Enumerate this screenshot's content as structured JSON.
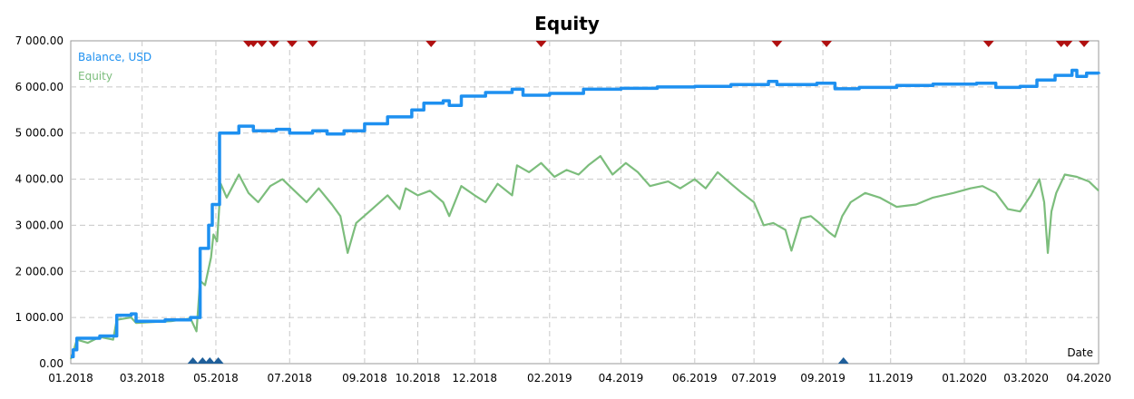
{
  "chart_data": {
    "type": "line",
    "title": "Equity",
    "xlabel": "Date",
    "ylabel": "",
    "ylim": [
      0,
      7000
    ],
    "grid": true,
    "legend_position": "top-left",
    "colors": {
      "balance": "#1e90f0",
      "equity": "#7cbd7c",
      "deal_marker_top": "#b01010",
      "deal_marker_bottom": "#1f5f9a",
      "grid": "#c8c8c8",
      "frame": "#9a9a9a"
    },
    "y_ticks": [
      "0.00",
      "1 000.00",
      "2 000.00",
      "3 000.00",
      "4 000.00",
      "5 000.00",
      "6 000.00",
      "7 000.00"
    ],
    "y_tick_values": [
      0,
      1000,
      2000,
      3000,
      4000,
      5000,
      6000,
      7000
    ],
    "x_ticks": [
      "01.2018",
      "03.2018",
      "05.2018",
      "07.2018",
      "09.2018",
      "10.2018",
      "12.2018",
      "02.2019",
      "04.2019",
      "06.2019",
      "07.2019",
      "09.2019",
      "11.2019",
      "01.2020",
      "03.2020",
      "04.2020"
    ],
    "x_tick_values": [
      "2018-01-01",
      "2018-03-01",
      "2018-05-01",
      "2018-07-01",
      "2018-09-01",
      "2018-10-15",
      "2018-12-01",
      "2019-02-01",
      "2019-04-01",
      "2019-06-01",
      "2019-07-20",
      "2019-09-15",
      "2019-11-10",
      "2020-01-10",
      "2020-03-01",
      "2020-04-30"
    ],
    "x_range": [
      "2018-01-01",
      "2020-04-30"
    ],
    "series": [
      {
        "name": "Balance, USD",
        "key": "balance",
        "step": true,
        "points": [
          [
            "2018-01-01",
            150
          ],
          [
            "2018-01-03",
            300
          ],
          [
            "2018-01-06",
            550
          ],
          [
            "2018-01-25",
            600
          ],
          [
            "2018-02-08",
            1050
          ],
          [
            "2018-02-20",
            1080
          ],
          [
            "2018-02-24",
            920
          ],
          [
            "2018-03-20",
            950
          ],
          [
            "2018-04-10",
            1000
          ],
          [
            "2018-04-18",
            2500
          ],
          [
            "2018-04-25",
            3000
          ],
          [
            "2018-04-28",
            3450
          ],
          [
            "2018-05-04",
            5000
          ],
          [
            "2018-05-20",
            5150
          ],
          [
            "2018-06-01",
            5050
          ],
          [
            "2018-06-20",
            5080
          ],
          [
            "2018-07-01",
            5000
          ],
          [
            "2018-07-20",
            5050
          ],
          [
            "2018-08-01",
            4980
          ],
          [
            "2018-08-15",
            5050
          ],
          [
            "2018-09-01",
            5200
          ],
          [
            "2018-09-20",
            5350
          ],
          [
            "2018-10-10",
            5500
          ],
          [
            "2018-10-20",
            5650
          ],
          [
            "2018-11-05",
            5700
          ],
          [
            "2018-11-10",
            5600
          ],
          [
            "2018-11-20",
            5800
          ],
          [
            "2018-12-10",
            5880
          ],
          [
            "2019-01-01",
            5950
          ],
          [
            "2019-01-10",
            5820
          ],
          [
            "2019-02-01",
            5860
          ],
          [
            "2019-03-01",
            5950
          ],
          [
            "2019-04-01",
            5970
          ],
          [
            "2019-05-01",
            6000
          ],
          [
            "2019-06-01",
            6010
          ],
          [
            "2019-07-01",
            6050
          ],
          [
            "2019-08-01",
            6120
          ],
          [
            "2019-08-08",
            6050
          ],
          [
            "2019-09-10",
            6080
          ],
          [
            "2019-09-25",
            5960
          ],
          [
            "2019-10-15",
            5990
          ],
          [
            "2019-11-15",
            6030
          ],
          [
            "2019-12-15",
            6060
          ],
          [
            "2020-01-20",
            6080
          ],
          [
            "2020-02-05",
            5990
          ],
          [
            "2020-02-25",
            6010
          ],
          [
            "2020-03-10",
            6150
          ],
          [
            "2020-03-25",
            6250
          ],
          [
            "2020-04-08",
            6360
          ],
          [
            "2020-04-12",
            6230
          ],
          [
            "2020-04-20",
            6300
          ],
          [
            "2020-04-30",
            6280
          ]
        ]
      },
      {
        "name": "Equity",
        "key": "equity",
        "step": false,
        "points": [
          [
            "2018-01-01",
            100
          ],
          [
            "2018-01-03",
            250
          ],
          [
            "2018-01-06",
            520
          ],
          [
            "2018-01-15",
            450
          ],
          [
            "2018-01-25",
            580
          ],
          [
            "2018-02-05",
            520
          ],
          [
            "2018-02-08",
            950
          ],
          [
            "2018-02-20",
            1000
          ],
          [
            "2018-02-24",
            880
          ],
          [
            "2018-03-10",
            900
          ],
          [
            "2018-03-25",
            920
          ],
          [
            "2018-04-10",
            980
          ],
          [
            "2018-04-15",
            700
          ],
          [
            "2018-04-18",
            1800
          ],
          [
            "2018-04-22",
            1700
          ],
          [
            "2018-04-27",
            2300
          ],
          [
            "2018-04-29",
            2800
          ],
          [
            "2018-05-02",
            2650
          ],
          [
            "2018-05-05",
            3900
          ],
          [
            "2018-05-10",
            3600
          ],
          [
            "2018-05-20",
            4100
          ],
          [
            "2018-05-28",
            3700
          ],
          [
            "2018-06-05",
            3500
          ],
          [
            "2018-06-15",
            3850
          ],
          [
            "2018-06-25",
            4000
          ],
          [
            "2018-07-05",
            3750
          ],
          [
            "2018-07-15",
            3500
          ],
          [
            "2018-07-25",
            3800
          ],
          [
            "2018-08-05",
            3450
          ],
          [
            "2018-08-12",
            3200
          ],
          [
            "2018-08-18",
            2400
          ],
          [
            "2018-08-25",
            3050
          ],
          [
            "2018-09-05",
            3300
          ],
          [
            "2018-09-20",
            3650
          ],
          [
            "2018-09-30",
            3350
          ],
          [
            "2018-10-05",
            3800
          ],
          [
            "2018-10-15",
            3650
          ],
          [
            "2018-10-25",
            3750
          ],
          [
            "2018-11-05",
            3500
          ],
          [
            "2018-11-10",
            3200
          ],
          [
            "2018-11-20",
            3850
          ],
          [
            "2018-12-01",
            3650
          ],
          [
            "2018-12-10",
            3500
          ],
          [
            "2018-12-20",
            3900
          ],
          [
            "2019-01-01",
            3650
          ],
          [
            "2019-01-05",
            4300
          ],
          [
            "2019-01-15",
            4150
          ],
          [
            "2019-01-25",
            4350
          ],
          [
            "2019-02-05",
            4050
          ],
          [
            "2019-02-15",
            4200
          ],
          [
            "2019-02-25",
            4100
          ],
          [
            "2019-03-05",
            4300
          ],
          [
            "2019-03-15",
            4500
          ],
          [
            "2019-03-25",
            4100
          ],
          [
            "2019-04-05",
            4350
          ],
          [
            "2019-04-15",
            4150
          ],
          [
            "2019-04-25",
            3850
          ],
          [
            "2019-05-10",
            3950
          ],
          [
            "2019-05-20",
            3800
          ],
          [
            "2019-06-01",
            4000
          ],
          [
            "2019-06-10",
            3800
          ],
          [
            "2019-06-20",
            4150
          ],
          [
            "2019-07-01",
            3900
          ],
          [
            "2019-07-10",
            3700
          ],
          [
            "2019-07-20",
            3500
          ],
          [
            "2019-07-28",
            3000
          ],
          [
            "2019-08-05",
            3050
          ],
          [
            "2019-08-15",
            2900
          ],
          [
            "2019-08-20",
            2450
          ],
          [
            "2019-08-28",
            3150
          ],
          [
            "2019-09-05",
            3200
          ],
          [
            "2019-09-12",
            3050
          ],
          [
            "2019-09-20",
            2850
          ],
          [
            "2019-09-25",
            2750
          ],
          [
            "2019-10-01",
            3200
          ],
          [
            "2019-10-08",
            3500
          ],
          [
            "2019-10-20",
            3700
          ],
          [
            "2019-11-01",
            3600
          ],
          [
            "2019-11-15",
            3400
          ],
          [
            "2019-12-01",
            3450
          ],
          [
            "2019-12-15",
            3600
          ],
          [
            "2020-01-01",
            3700
          ],
          [
            "2020-01-15",
            3800
          ],
          [
            "2020-01-25",
            3850
          ],
          [
            "2020-02-05",
            3700
          ],
          [
            "2020-02-15",
            3350
          ],
          [
            "2020-02-25",
            3300
          ],
          [
            "2020-03-05",
            3650
          ],
          [
            "2020-03-12",
            4000
          ],
          [
            "2020-03-16",
            3500
          ],
          [
            "2020-03-19",
            2400
          ],
          [
            "2020-03-22",
            3300
          ],
          [
            "2020-03-26",
            3700
          ],
          [
            "2020-04-02",
            4100
          ],
          [
            "2020-04-12",
            4050
          ],
          [
            "2020-04-22",
            3950
          ],
          [
            "2020-04-30",
            3750
          ]
        ]
      }
    ],
    "deal_markers_top": [
      "2018-05-28",
      "2018-06-01",
      "2018-06-08",
      "2018-06-18",
      "2018-07-03",
      "2018-07-20",
      "2018-10-26",
      "2019-01-25",
      "2019-08-08",
      "2019-09-18",
      "2020-01-30",
      "2020-03-30",
      "2020-04-04",
      "2020-04-18"
    ],
    "deal_markers_bottom": [
      "2018-04-12",
      "2018-04-20",
      "2018-04-26",
      "2018-05-03",
      "2019-10-02"
    ]
  }
}
